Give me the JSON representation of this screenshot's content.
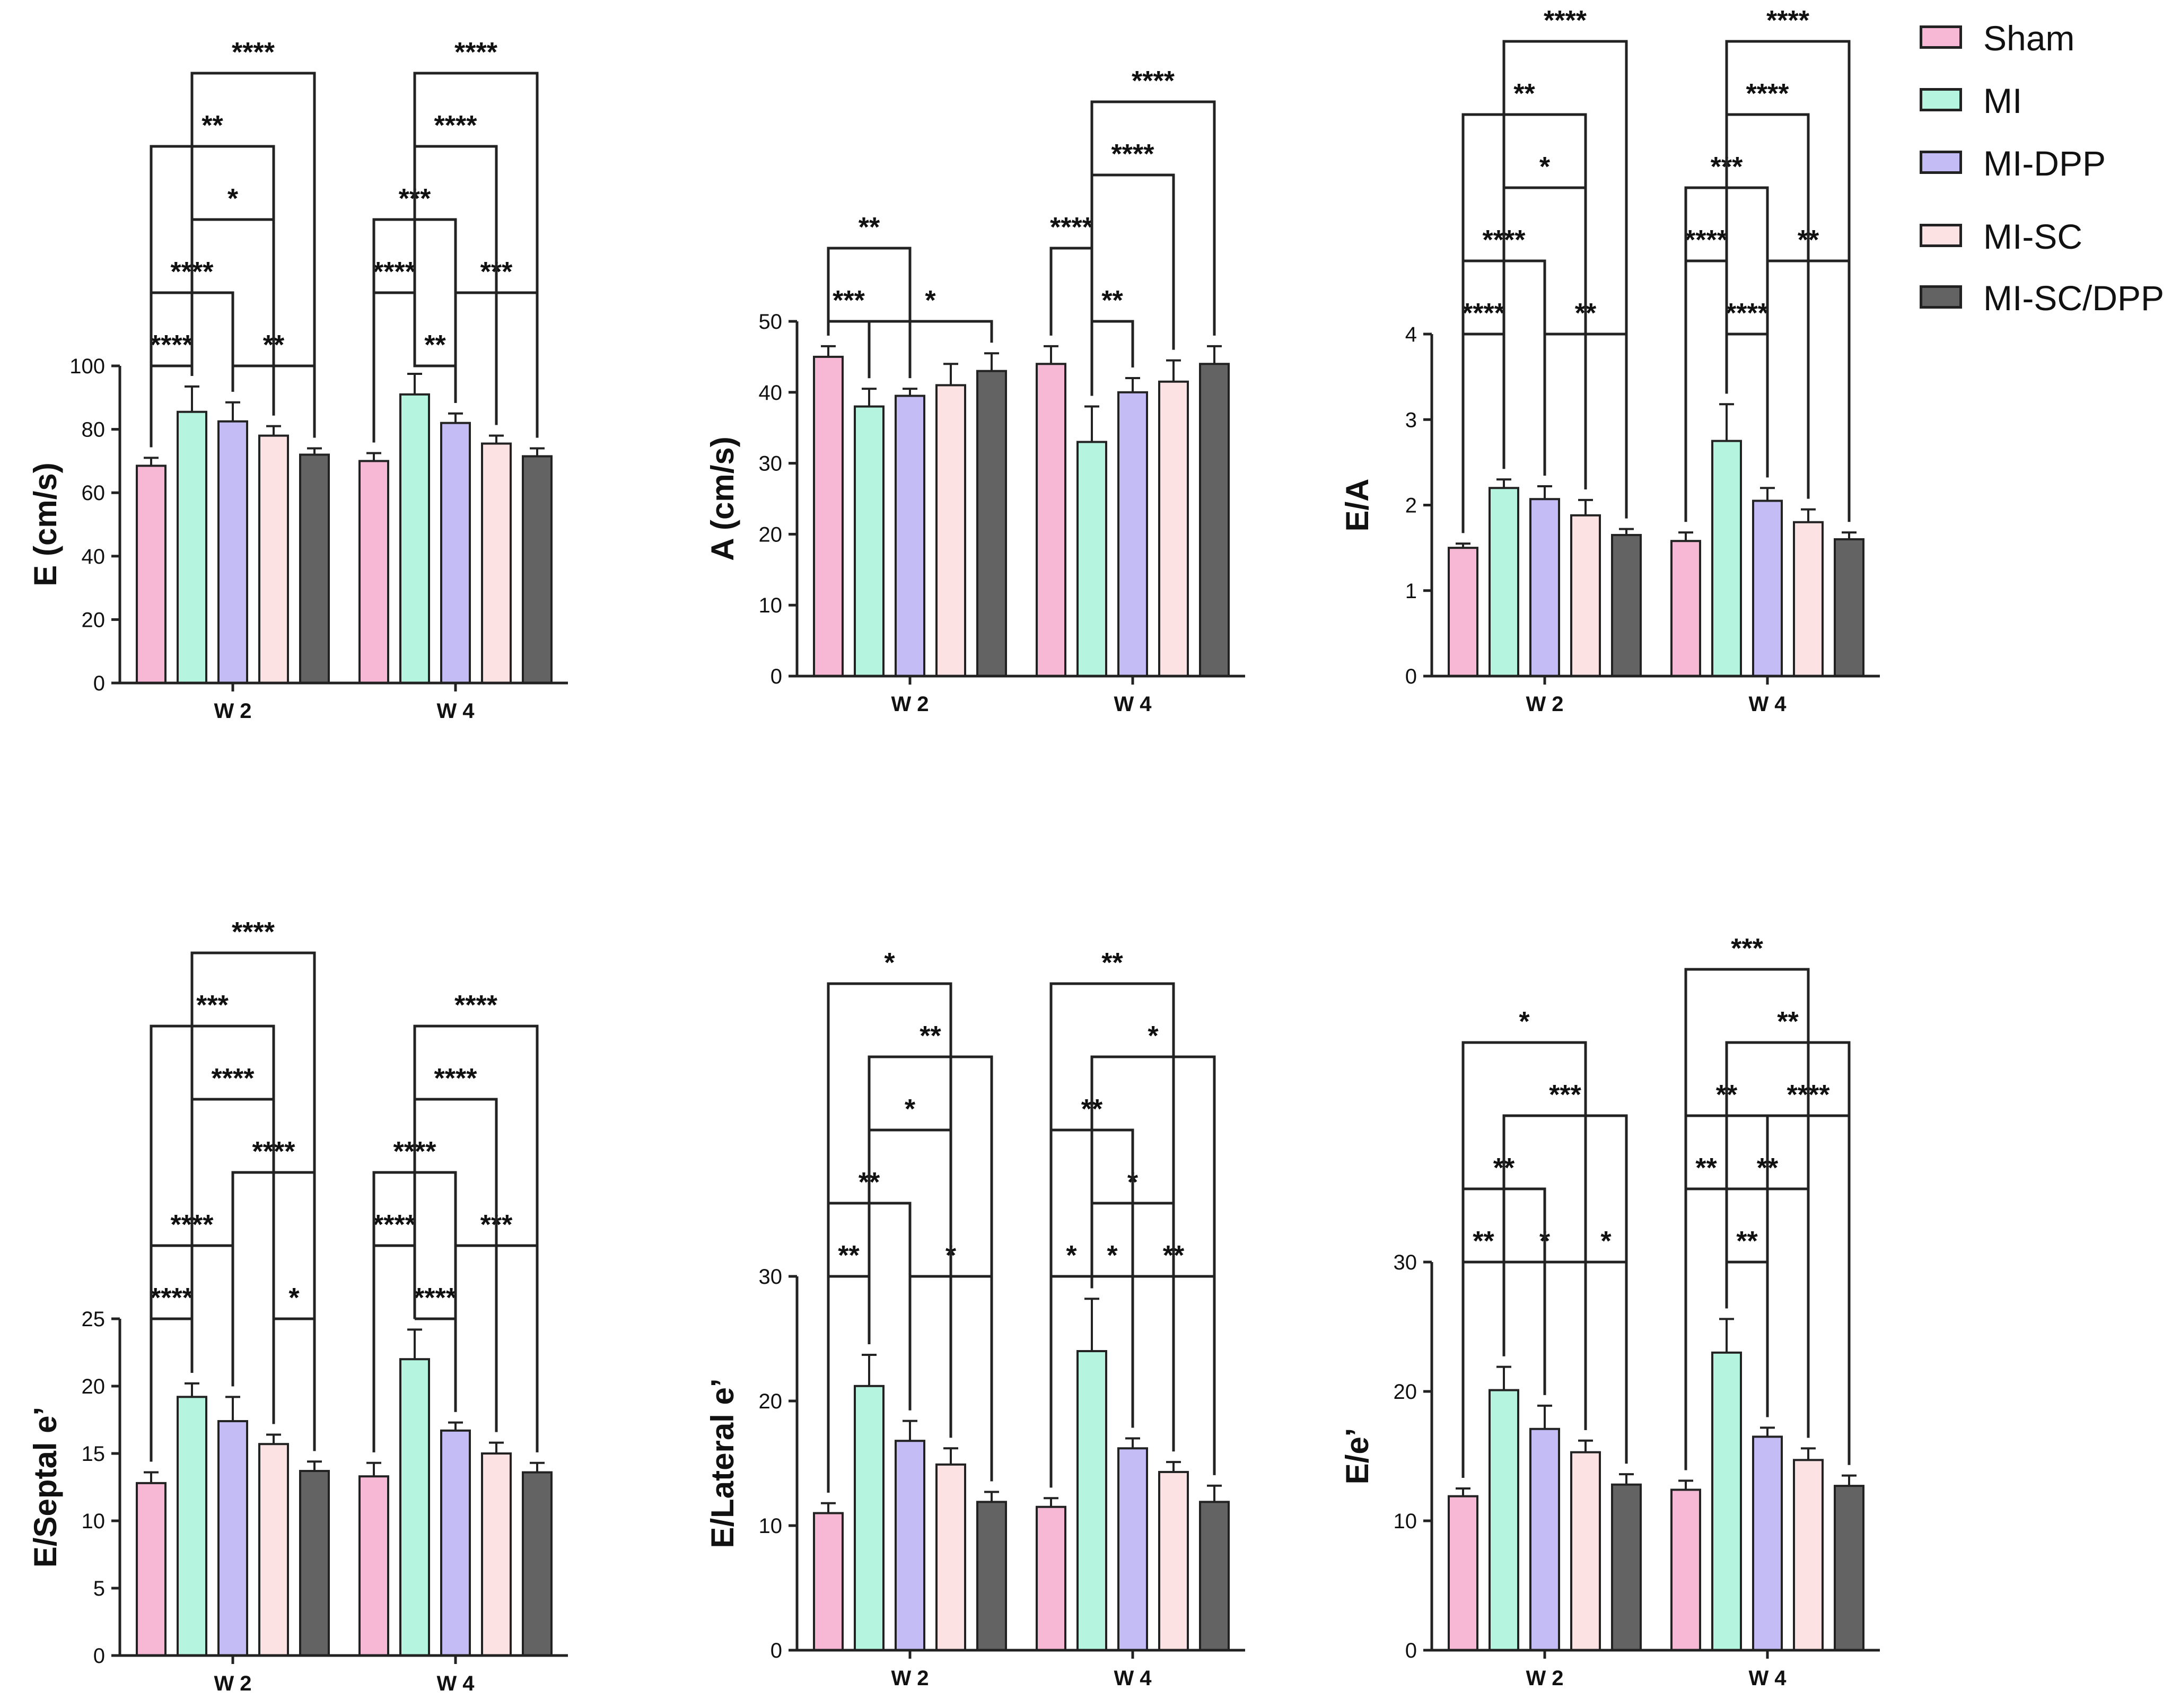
{
  "legend": {
    "items": [
      {
        "label": "Sham",
        "color": "#F7B8D6"
      },
      {
        "label": "MI",
        "color": "#B5F5E0"
      },
      {
        "label": "MI-DPP",
        "color": "#C4BCF5"
      },
      {
        "label": "MI-SC",
        "color": "#FDE2E4"
      },
      {
        "label": "MI-SC/DPP",
        "color": "#636363"
      }
    ]
  },
  "chart_data": [
    {
      "type": "bar",
      "ylabel": "E (cm/s)",
      "categories": [
        "W 2",
        "W 4"
      ],
      "ylim": [
        0,
        100
      ],
      "yticks": [
        0,
        20,
        40,
        60,
        80,
        100
      ],
      "series": [
        {
          "name": "Sham",
          "values": [
            68.5,
            70
          ],
          "errors": [
            2.5,
            2.5
          ]
        },
        {
          "name": "MI",
          "values": [
            85.5,
            91
          ],
          "errors": [
            8,
            6.5
          ]
        },
        {
          "name": "MI-DPP",
          "values": [
            82.5,
            82
          ],
          "errors": [
            6,
            3
          ]
        },
        {
          "name": "MI-SC",
          "values": [
            78,
            75.5
          ],
          "errors": [
            3,
            2.5
          ]
        },
        {
          "name": "MI-SC/DPP",
          "values": [
            72,
            71.5
          ],
          "errors": [
            2,
            2.5
          ]
        }
      ],
      "significance": [
        {
          "group": 0,
          "from": 0,
          "to": 1,
          "level": 1,
          "label": "****"
        },
        {
          "group": 0,
          "from": 2,
          "to": 4,
          "level": 1,
          "label": "**"
        },
        {
          "group": 0,
          "from": 0,
          "to": 2,
          "level": 2,
          "label": "****"
        },
        {
          "group": 0,
          "from": 1,
          "to": 3,
          "level": 3,
          "label": "*"
        },
        {
          "group": 0,
          "from": 0,
          "to": 3,
          "level": 4,
          "label": "**"
        },
        {
          "group": 0,
          "from": 1,
          "to": 4,
          "level": 5,
          "label": "****"
        },
        {
          "group": 1,
          "from": 1,
          "to": 2,
          "level": 1,
          "label": "**"
        },
        {
          "group": 1,
          "from": 0,
          "to": 1,
          "level": 2,
          "label": "****"
        },
        {
          "group": 1,
          "from": 2,
          "to": 4,
          "level": 2,
          "label": "***"
        },
        {
          "group": 1,
          "from": 0,
          "to": 2,
          "level": 3,
          "label": "***"
        },
        {
          "group": 1,
          "from": 1,
          "to": 3,
          "level": 4,
          "label": "****"
        },
        {
          "group": 1,
          "from": 1,
          "to": 4,
          "level": 5,
          "label": "****"
        }
      ]
    },
    {
      "type": "bar",
      "ylabel": "A (cm/s)",
      "categories": [
        "W 2",
        "W 4"
      ],
      "ylim": [
        0,
        50
      ],
      "yticks": [
        0,
        10,
        20,
        30,
        40,
        50
      ],
      "series": [
        {
          "name": "Sham",
          "values": [
            45,
            44
          ],
          "errors": [
            1.5,
            2.5
          ]
        },
        {
          "name": "MI",
          "values": [
            38,
            33
          ],
          "errors": [
            2.5,
            5
          ]
        },
        {
          "name": "MI-DPP",
          "values": [
            39.5,
            40
          ],
          "errors": [
            1,
            2
          ]
        },
        {
          "name": "MI-SC",
          "values": [
            41,
            41.5
          ],
          "errors": [
            3,
            3
          ]
        },
        {
          "name": "MI-SC/DPP",
          "values": [
            43,
            44
          ],
          "errors": [
            2.5,
            2.5
          ]
        }
      ],
      "significance": [
        {
          "group": 0,
          "from": 0,
          "to": 1,
          "level": 1,
          "label": "***"
        },
        {
          "group": 0,
          "from": 1,
          "to": 4,
          "level": 1,
          "label": "*"
        },
        {
          "group": 0,
          "from": 0,
          "to": 2,
          "level": 2,
          "label": "**"
        },
        {
          "group": 1,
          "from": 1,
          "to": 2,
          "level": 1,
          "label": "**"
        },
        {
          "group": 1,
          "from": 0,
          "to": 1,
          "level": 2,
          "label": "****"
        },
        {
          "group": 1,
          "from": 1,
          "to": 3,
          "level": 3,
          "label": "****"
        },
        {
          "group": 1,
          "from": 1,
          "to": 4,
          "level": 4,
          "label": "****"
        }
      ]
    },
    {
      "type": "bar",
      "ylabel": "E/A",
      "categories": [
        "W 2",
        "W 4"
      ],
      "ylim": [
        0,
        4
      ],
      "yticks": [
        0,
        1,
        2,
        3,
        4
      ],
      "series": [
        {
          "name": "Sham",
          "values": [
            1.5,
            1.58
          ],
          "errors": [
            0.05,
            0.1
          ]
        },
        {
          "name": "MI",
          "values": [
            2.2,
            2.75
          ],
          "errors": [
            0.1,
            0.43
          ]
        },
        {
          "name": "MI-DPP",
          "values": [
            2.07,
            2.05
          ],
          "errors": [
            0.15,
            0.15
          ]
        },
        {
          "name": "MI-SC",
          "values": [
            1.88,
            1.8
          ],
          "errors": [
            0.18,
            0.15
          ]
        },
        {
          "name": "MI-SC/DPP",
          "values": [
            1.65,
            1.6
          ],
          "errors": [
            0.07,
            0.08
          ]
        }
      ],
      "significance": [
        {
          "group": 0,
          "from": 0,
          "to": 1,
          "level": 1,
          "label": "****"
        },
        {
          "group": 0,
          "from": 2,
          "to": 4,
          "level": 1,
          "label": "**"
        },
        {
          "group": 0,
          "from": 0,
          "to": 2,
          "level": 2,
          "label": "****"
        },
        {
          "group": 0,
          "from": 1,
          "to": 3,
          "level": 3,
          "label": "*"
        },
        {
          "group": 0,
          "from": 0,
          "to": 3,
          "level": 4,
          "label": "**"
        },
        {
          "group": 0,
          "from": 1,
          "to": 4,
          "level": 5,
          "label": "****"
        },
        {
          "group": 1,
          "from": 1,
          "to": 2,
          "level": 1,
          "label": "****"
        },
        {
          "group": 1,
          "from": 0,
          "to": 1,
          "level": 2,
          "label": "****"
        },
        {
          "group": 1,
          "from": 2,
          "to": 4,
          "level": 2,
          "label": "**"
        },
        {
          "group": 1,
          "from": 0,
          "to": 2,
          "level": 3,
          "label": "***"
        },
        {
          "group": 1,
          "from": 1,
          "to": 3,
          "level": 4,
          "label": "****"
        },
        {
          "group": 1,
          "from": 1,
          "to": 4,
          "level": 5,
          "label": "****"
        }
      ]
    },
    {
      "type": "bar",
      "ylabel": "E/Septal e’",
      "categories": [
        "W 2",
        "W 4"
      ],
      "ylim": [
        0,
        25
      ],
      "yticks": [
        0,
        5,
        10,
        15,
        20,
        25
      ],
      "series": [
        {
          "name": "Sham",
          "values": [
            12.8,
            13.3
          ],
          "errors": [
            0.8,
            1
          ]
        },
        {
          "name": "MI",
          "values": [
            19.2,
            22
          ],
          "errors": [
            1,
            2.2
          ]
        },
        {
          "name": "MI-DPP",
          "values": [
            17.4,
            16.7
          ],
          "errors": [
            1.8,
            0.6
          ]
        },
        {
          "name": "MI-SC",
          "values": [
            15.7,
            15
          ],
          "errors": [
            0.7,
            0.8
          ]
        },
        {
          "name": "MI-SC/DPP",
          "values": [
            13.7,
            13.6
          ],
          "errors": [
            0.7,
            0.7
          ]
        }
      ],
      "significance": [
        {
          "group": 0,
          "from": 0,
          "to": 1,
          "level": 1,
          "label": "****"
        },
        {
          "group": 0,
          "from": 3,
          "to": 4,
          "level": 1,
          "label": "*"
        },
        {
          "group": 0,
          "from": 0,
          "to": 2,
          "level": 2,
          "label": "****"
        },
        {
          "group": 0,
          "from": 2,
          "to": 4,
          "level": 3,
          "label": "****"
        },
        {
          "group": 0,
          "from": 1,
          "to": 3,
          "level": 4,
          "label": "****"
        },
        {
          "group": 0,
          "from": 0,
          "to": 3,
          "level": 5,
          "label": "***"
        },
        {
          "group": 0,
          "from": 1,
          "to": 4,
          "level": 6,
          "label": "****"
        },
        {
          "group": 1,
          "from": 1,
          "to": 2,
          "level": 1,
          "label": "****"
        },
        {
          "group": 1,
          "from": 0,
          "to": 1,
          "level": 2,
          "label": "****"
        },
        {
          "group": 1,
          "from": 2,
          "to": 4,
          "level": 2,
          "label": "***"
        },
        {
          "group": 1,
          "from": 0,
          "to": 2,
          "level": 3,
          "label": "****"
        },
        {
          "group": 1,
          "from": 1,
          "to": 3,
          "level": 4,
          "label": "****"
        },
        {
          "group": 1,
          "from": 1,
          "to": 4,
          "level": 5,
          "label": "****"
        }
      ]
    },
    {
      "type": "bar",
      "ylabel": "E/Lateral e’",
      "categories": [
        "W 2",
        "W 4"
      ],
      "ylim": [
        0,
        30
      ],
      "yticks": [
        0,
        10,
        20,
        30
      ],
      "series": [
        {
          "name": "Sham",
          "values": [
            11,
            11.5
          ],
          "errors": [
            0.8,
            0.7
          ]
        },
        {
          "name": "MI",
          "values": [
            21.2,
            24
          ],
          "errors": [
            2.5,
            4.2
          ]
        },
        {
          "name": "MI-DPP",
          "values": [
            16.8,
            16.2
          ],
          "errors": [
            1.6,
            0.8
          ]
        },
        {
          "name": "MI-SC",
          "values": [
            14.9,
            14.3
          ],
          "errors": [
            1.3,
            0.8
          ]
        },
        {
          "name": "MI-SC/DPP",
          "values": [
            11.9,
            11.9
          ],
          "errors": [
            0.8,
            1.3
          ]
        }
      ],
      "significance": [
        {
          "group": 0,
          "from": 0,
          "to": 1,
          "level": 1,
          "label": "**"
        },
        {
          "group": 0,
          "from": 2,
          "to": 4,
          "level": 1,
          "label": "*"
        },
        {
          "group": 0,
          "from": 0,
          "to": 2,
          "level": 2,
          "label": "**"
        },
        {
          "group": 0,
          "from": 1,
          "to": 3,
          "level": 3,
          "label": "*"
        },
        {
          "group": 0,
          "from": 1,
          "to": 4,
          "level": 4,
          "label": "**"
        },
        {
          "group": 0,
          "from": 0,
          "to": 3,
          "level": 5,
          "label": "*"
        },
        {
          "group": 1,
          "from": 0,
          "to": 1,
          "level": 1,
          "label": "*"
        },
        {
          "group": 1,
          "from": 1,
          "to": 2,
          "level": 1,
          "label": "*"
        },
        {
          "group": 1,
          "from": 2,
          "to": 4,
          "level": 1,
          "label": "**"
        },
        {
          "group": 1,
          "from": 1,
          "to": 3,
          "level": 2,
          "label": "*"
        },
        {
          "group": 1,
          "from": 0,
          "to": 2,
          "level": 3,
          "label": "**"
        },
        {
          "group": 1,
          "from": 1,
          "to": 4,
          "level": 4,
          "label": "*"
        },
        {
          "group": 1,
          "from": 0,
          "to": 3,
          "level": 5,
          "label": "**"
        }
      ]
    },
    {
      "type": "bar",
      "ylabel": "E/e’",
      "categories": [
        "W 2",
        "W 4"
      ],
      "ylim": [
        0,
        30
      ],
      "yticks": [
        0,
        10,
        20,
        30
      ],
      "series": [
        {
          "name": "Sham",
          "values": [
            11.9,
            12.4
          ],
          "errors": [
            0.6,
            0.7
          ]
        },
        {
          "name": "MI",
          "values": [
            20.1,
            23
          ],
          "errors": [
            1.8,
            2.6
          ]
        },
        {
          "name": "MI-DPP",
          "values": [
            17.1,
            16.5
          ],
          "errors": [
            1.8,
            0.7
          ]
        },
        {
          "name": "MI-SC",
          "values": [
            15.3,
            14.7
          ],
          "errors": [
            0.9,
            0.9
          ]
        },
        {
          "name": "MI-SC/DPP",
          "values": [
            12.8,
            12.7
          ],
          "errors": [
            0.8,
            0.8
          ]
        }
      ],
      "significance": [
        {
          "group": 0,
          "from": 0,
          "to": 1,
          "level": 1,
          "label": "**"
        },
        {
          "group": 0,
          "from": 1,
          "to": 3,
          "level": 1,
          "label": "*"
        },
        {
          "group": 0,
          "from": 3,
          "to": 4,
          "level": 1,
          "label": "*"
        },
        {
          "group": 0,
          "from": 0,
          "to": 2,
          "level": 2,
          "label": "**"
        },
        {
          "group": 0,
          "from": 1,
          "to": 4,
          "level": 3,
          "label": "***"
        },
        {
          "group": 0,
          "from": 0,
          "to": 3,
          "level": 4,
          "label": "*"
        },
        {
          "group": 1,
          "from": 1,
          "to": 2,
          "level": 1,
          "label": "**"
        },
        {
          "group": 1,
          "from": 0,
          "to": 1,
          "level": 2,
          "label": "**"
        },
        {
          "group": 1,
          "from": 1,
          "to": 3,
          "level": 2,
          "label": "**"
        },
        {
          "group": 1,
          "from": 0,
          "to": 2,
          "level": 3,
          "label": "**"
        },
        {
          "group": 1,
          "from": 2,
          "to": 4,
          "level": 3,
          "label": "****"
        },
        {
          "group": 1,
          "from": 1,
          "to": 4,
          "level": 4,
          "label": "**"
        },
        {
          "group": 1,
          "from": 0,
          "to": 3,
          "level": 5,
          "label": "***"
        }
      ]
    }
  ]
}
